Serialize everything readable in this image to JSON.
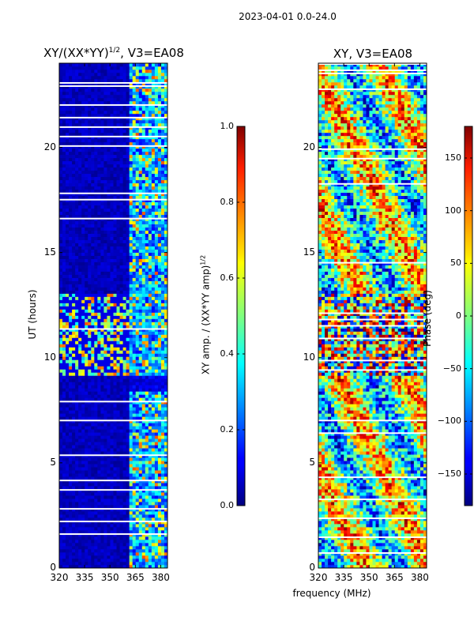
{
  "suptitle": "2023-04-01 0.0-24.0",
  "colors": {
    "bad_flag": "#ffffff",
    "frame": "#000000"
  },
  "chart_data": [
    {
      "type": "heatmap",
      "title_main": "XY/(XX*YY)",
      "title_sup": "1/2",
      "title_tail": ", V3=EA08",
      "xlabel": "",
      "ylabel": "UT (hours)",
      "xlim": [
        320,
        384
      ],
      "ylim": [
        0,
        24
      ],
      "xticks": [
        320,
        335,
        350,
        365,
        380
      ],
      "yticks": [
        0,
        5,
        10,
        15,
        20
      ],
      "colormap": "jet",
      "colorbar": {
        "label_main": "XY amp. / (XX*YY amp)",
        "label_sup": "1/2",
        "range": [
          0.0,
          1.0
        ],
        "ticks": [
          "0.0",
          "0.2",
          "0.4",
          "0.6",
          "0.8",
          "1.0"
        ]
      }
    },
    {
      "type": "heatmap",
      "title": "XY, V3=EA08",
      "xlabel": "frequency (MHz)",
      "ylabel": "",
      "xlim": [
        320,
        384
      ],
      "ylim": [
        0,
        24
      ],
      "xticks": [
        320,
        335,
        350,
        365,
        380
      ],
      "yticks": [
        0,
        5,
        10,
        15,
        20
      ],
      "colormap": "jet",
      "colorbar": {
        "label": "Phase (deg)",
        "range": [
          -180,
          180
        ],
        "ticks": [
          "−150",
          "−100",
          "−50",
          "0",
          "50",
          "100",
          "150"
        ]
      }
    }
  ]
}
